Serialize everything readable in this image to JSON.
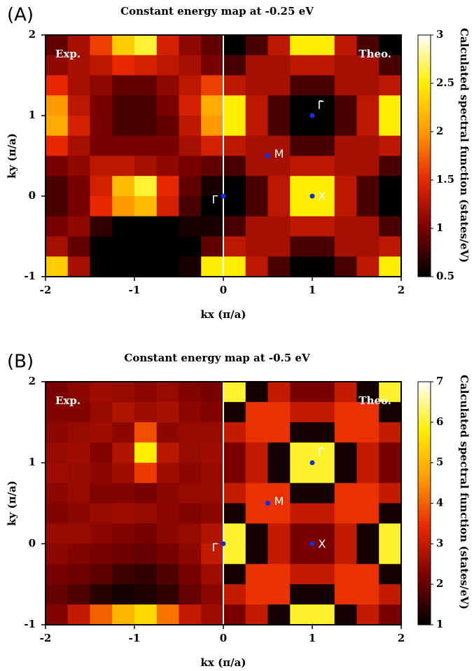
{
  "chart_data": [
    {
      "type": "heatmap",
      "panel_label": "(A)",
      "title": "Constant energy map at -0.25 eV",
      "xlabel": "kx (π/a)",
      "ylabel": "ky (π/a)",
      "colorbar_label": "Calculated spectral function (states/eV)",
      "left_label": "Exp.",
      "right_label": "Theo.",
      "xlim": [
        -2,
        2
      ],
      "ylim": [
        -1,
        2
      ],
      "xticks": [
        -2,
        -1,
        0,
        1,
        2
      ],
      "yticks": [
        -1,
        0,
        1,
        2
      ],
      "clim": [
        0.5,
        3
      ],
      "cticks": [
        0.5,
        1,
        1.5,
        2,
        2.5,
        3
      ],
      "colormap": [
        "#000000",
        "#7a0000",
        "#e82800",
        "#ff9a00",
        "#ffee00",
        "#ffffff"
      ],
      "xbins": [
        -2,
        -1.75,
        -1.5,
        -1.25,
        -1,
        -0.75,
        -0.5,
        -0.25,
        0,
        0.25,
        0.5,
        0.75,
        1,
        1.25,
        1.5,
        1.75,
        2
      ],
      "ybins": [
        2,
        1.75,
        1.5,
        1.25,
        1,
        0.75,
        0.5,
        0.25,
        0,
        -0.25,
        -0.5,
        -0.75,
        -1
      ],
      "z": [
        [
          0.9,
          1.2,
          1.6,
          2.3,
          2.6,
          1.4,
          1.1,
          0.9,
          0.5,
          0.8,
          1.3,
          2.5,
          2.5,
          1.3,
          0.8,
          0.5
        ],
        [
          1.1,
          1.2,
          1.3,
          1.5,
          1.4,
          1.3,
          1.2,
          1.0,
          0.8,
          1.2,
          1.2,
          1.3,
          1.3,
          1.2,
          1.2,
          0.8
        ],
        [
          1.5,
          1.2,
          1.1,
          0.9,
          0.9,
          1.1,
          1.3,
          1.6,
          1.3,
          1.2,
          1.2,
          0.8,
          0.8,
          1.2,
          1.2,
          1.3
        ],
        [
          2.0,
          1.3,
          1.0,
          0.8,
          0.8,
          1.0,
          1.4,
          2.1,
          2.5,
          1.3,
          0.8,
          0.5,
          0.5,
          0.8,
          1.3,
          2.5
        ],
        [
          2.1,
          1.4,
          1.0,
          0.8,
          0.8,
          0.9,
          1.3,
          2.0,
          2.5,
          1.3,
          0.8,
          0.5,
          0.5,
          0.8,
          1.3,
          2.5
        ],
        [
          1.5,
          1.2,
          1.0,
          1.0,
          1.0,
          1.0,
          1.2,
          1.4,
          1.3,
          1.2,
          1.2,
          0.8,
          0.8,
          1.2,
          1.2,
          1.3
        ],
        [
          1.0,
          1.1,
          1.3,
          1.3,
          1.2,
          1.1,
          1.0,
          0.9,
          0.8,
          1.2,
          1.2,
          1.3,
          1.3,
          1.2,
          1.2,
          0.8
        ],
        [
          0.8,
          1.0,
          1.4,
          2.2,
          2.6,
          1.5,
          0.9,
          0.6,
          0.5,
          0.8,
          1.3,
          2.5,
          2.5,
          1.3,
          0.8,
          0.5
        ],
        [
          0.8,
          1.0,
          1.5,
          2.0,
          2.2,
          1.4,
          0.8,
          0.5,
          0.5,
          0.8,
          1.3,
          2.5,
          2.5,
          1.3,
          0.8,
          0.5
        ],
        [
          1.0,
          1.1,
          0.7,
          0.5,
          0.5,
          0.5,
          0.6,
          0.6,
          0.8,
          1.2,
          1.2,
          1.3,
          1.3,
          1.2,
          1.2,
          0.8
        ],
        [
          1.2,
          0.9,
          0.5,
          0.5,
          0.5,
          0.5,
          0.5,
          0.9,
          1.3,
          1.2,
          1.2,
          0.8,
          0.8,
          1.2,
          1.2,
          1.3
        ],
        [
          2.3,
          1.2,
          0.5,
          0.5,
          0.5,
          0.5,
          0.6,
          2.5,
          2.5,
          1.3,
          0.8,
          0.5,
          0.5,
          0.8,
          1.3,
          2.5
        ]
      ],
      "points": [
        {
          "label": "Γ",
          "x": 0,
          "y": 0
        },
        {
          "label": "M",
          "x": 0.5,
          "y": 0.5
        },
        {
          "label": "X",
          "x": 1,
          "y": 0
        },
        {
          "label": "Γ̄",
          "x": 1,
          "y": 1
        }
      ]
    },
    {
      "type": "heatmap",
      "panel_label": "(B)",
      "title": "Constant energy map at -0.5 eV",
      "xlabel": "kx (π/a)",
      "ylabel": "ky (π/a)",
      "colorbar_label": "Calculated spectral function (states/eV)",
      "left_label": "Exp.",
      "right_label": "Theo.",
      "xlim": [
        -2,
        2
      ],
      "ylim": [
        -1,
        2
      ],
      "xticks": [
        -2,
        -1,
        0,
        1,
        2
      ],
      "yticks": [
        -1,
        0,
        1,
        2
      ],
      "clim": [
        1,
        7
      ],
      "cticks": [
        1,
        2,
        3,
        4,
        5,
        6,
        7
      ],
      "colormap": [
        "#000000",
        "#7a0000",
        "#e82800",
        "#ff9a00",
        "#ffee00",
        "#ffffff"
      ],
      "xbins": [
        -2,
        -1.75,
        -1.5,
        -1.25,
        -1,
        -0.75,
        -0.5,
        -0.25,
        0,
        0.25,
        0.5,
        0.75,
        1,
        1.25,
        1.5,
        1.75,
        2
      ],
      "ybins": [
        2,
        1.75,
        1.5,
        1.25,
        1,
        0.75,
        0.5,
        0.25,
        0,
        -0.25,
        -0.5,
        -0.75,
        -1
      ],
      "z": [
        [
          2.2,
          2.4,
          2.6,
          2.5,
          2.4,
          2.5,
          2.3,
          2.2,
          6,
          1.2,
          3,
          2.2,
          2.2,
          3,
          1.2,
          6
        ],
        [
          2.3,
          2.3,
          2.5,
          2.8,
          2.6,
          2.7,
          2.4,
          2.3,
          1.2,
          3.5,
          3.5,
          3,
          3,
          3.5,
          3.5,
          1.2
        ],
        [
          2.4,
          2.5,
          2.6,
          2.4,
          3.8,
          2.4,
          2.5,
          2.5,
          3,
          3.5,
          3.5,
          1.2,
          1.2,
          3.5,
          3.5,
          3
        ],
        [
          2.5,
          2.6,
          2.3,
          2.8,
          5.8,
          2.9,
          2.5,
          2.6,
          2.2,
          3,
          1.2,
          6,
          6,
          1.2,
          3,
          2.2
        ],
        [
          2.6,
          2.5,
          2.4,
          2.6,
          3.6,
          2.6,
          2.4,
          2.5,
          2.2,
          3,
          1.2,
          6,
          6,
          1.2,
          3,
          2.2
        ],
        [
          2.4,
          2.5,
          2.3,
          2.3,
          2.2,
          2.4,
          2.5,
          2.5,
          3,
          3.5,
          3.5,
          1.2,
          1.2,
          3.5,
          3.5,
          3
        ],
        [
          2.3,
          2.4,
          2.5,
          2.6,
          2.5,
          2.4,
          2.3,
          2.4,
          1.2,
          3.5,
          3.5,
          3,
          3,
          3.5,
          3.5,
          1.2
        ],
        [
          2.5,
          2.5,
          2.4,
          2.3,
          2.2,
          2.4,
          2.5,
          2.8,
          6,
          1.2,
          3,
          2.2,
          2.2,
          3,
          1.2,
          6
        ],
        [
          2.4,
          2.3,
          2.2,
          2.1,
          2.0,
          2.2,
          2.4,
          3.0,
          6,
          1.2,
          3,
          2.2,
          2.2,
          3,
          1.2,
          6
        ],
        [
          2.2,
          2.1,
          1.9,
          1.6,
          1.5,
          1.8,
          2.2,
          2.6,
          1.2,
          3.5,
          3.5,
          3,
          3,
          3.5,
          3.5,
          1.2
        ],
        [
          2.0,
          1.8,
          1.4,
          1.2,
          1.3,
          1.5,
          2.0,
          2.4,
          3,
          3.5,
          3.5,
          1.2,
          1.2,
          3.5,
          3.5,
          3
        ],
        [
          2.3,
          3.0,
          4.0,
          5.0,
          5.5,
          4.2,
          3.0,
          2.6,
          2.2,
          3,
          1.2,
          6,
          6,
          1.2,
          3,
          2.2
        ]
      ],
      "points": [
        {
          "label": "Γ",
          "x": 0,
          "y": 0
        },
        {
          "label": "M",
          "x": 0.5,
          "y": 0.5
        },
        {
          "label": "X",
          "x": 1,
          "y": 0
        },
        {
          "label": "Γ̄",
          "x": 1,
          "y": 1
        }
      ]
    }
  ]
}
